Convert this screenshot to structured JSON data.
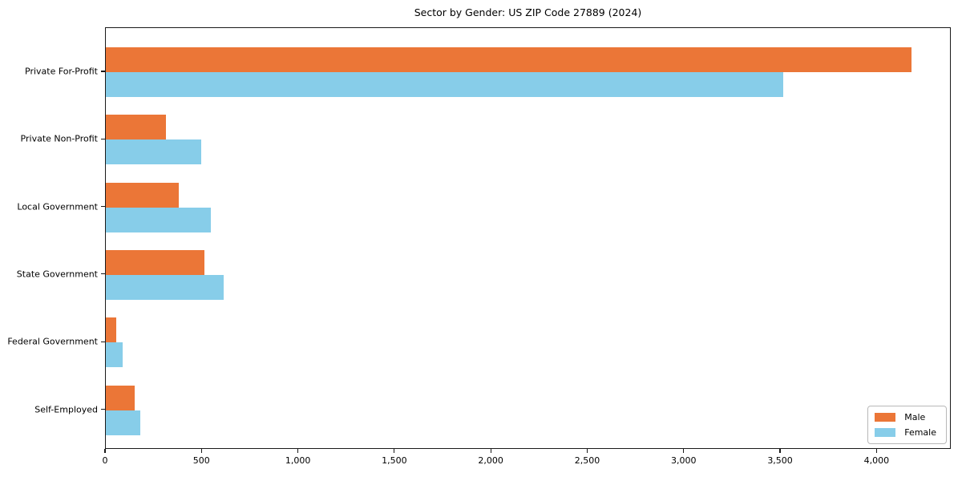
{
  "chart_data": {
    "type": "bar",
    "orientation": "horizontal",
    "title": "Sector by Gender: US ZIP Code 27889 (2024)",
    "categories": [
      "Private For-Profit",
      "Private Non-Profit",
      "Local Government",
      "State Government",
      "Federal Government",
      "Self-Employed"
    ],
    "series": [
      {
        "name": "Male",
        "color": "#eb7637",
        "values": [
          4175,
          310,
          380,
          510,
          55,
          150
        ]
      },
      {
        "name": "Female",
        "color": "#87cde9",
        "values": [
          3510,
          495,
          545,
          610,
          85,
          180
        ]
      }
    ],
    "xlabel": "",
    "ylabel": "",
    "xlim": [
      0,
      4385
    ],
    "xticks": [
      0,
      500,
      1000,
      1500,
      2000,
      2500,
      3000,
      3500,
      4000
    ],
    "xtick_labels": [
      "0",
      "500",
      "1,000",
      "1,500",
      "2,000",
      "2,500",
      "3,000",
      "3,500",
      "4,000"
    ],
    "grid": false,
    "legend_position": "lower right"
  }
}
